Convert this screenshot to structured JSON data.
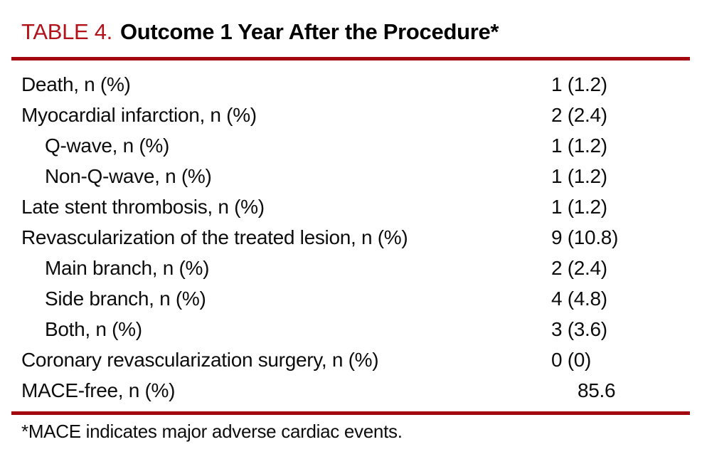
{
  "title": {
    "label": "TABLE 4.",
    "text": "Outcome 1 Year After the Procedure*"
  },
  "rows": [
    {
      "label": "Death, n (%)",
      "value": "1 (1.2)",
      "indent": false,
      "value_shifted": false
    },
    {
      "label": "Myocardial infarction, n (%)",
      "value": "2 (2.4)",
      "indent": false,
      "value_shifted": false
    },
    {
      "label": "Q-wave, n (%)",
      "value": "1 (1.2)",
      "indent": true,
      "value_shifted": false
    },
    {
      "label": "Non-Q-wave, n (%)",
      "value": "1 (1.2)",
      "indent": true,
      "value_shifted": false
    },
    {
      "label": "Late stent thrombosis, n (%)",
      "value": "1 (1.2)",
      "indent": false,
      "value_shifted": false
    },
    {
      "label": "Revascularization of the treated lesion, n (%)",
      "value": "9 (10.8)",
      "indent": false,
      "value_shifted": false
    },
    {
      "label": "Main branch, n (%)",
      "value": "2 (2.4)",
      "indent": true,
      "value_shifted": false
    },
    {
      "label": "Side branch, n (%)",
      "value": "4 (4.8)",
      "indent": true,
      "value_shifted": false
    },
    {
      "label": "Both, n (%)",
      "value": "3 (3.6)",
      "indent": true,
      "value_shifted": false
    },
    {
      "label": "Coronary revascularization surgery, n (%)",
      "value": "0 (0)",
      "indent": false,
      "value_shifted": false
    },
    {
      "label": "MACE-free, n (%)",
      "value": "85.6",
      "indent": false,
      "value_shifted": true
    }
  ],
  "footnote": "*MACE indicates major adverse cardiac events.",
  "colors": {
    "title_red": "#B2121A",
    "rule_red": "#A30710",
    "text": "#0D0D0D"
  }
}
